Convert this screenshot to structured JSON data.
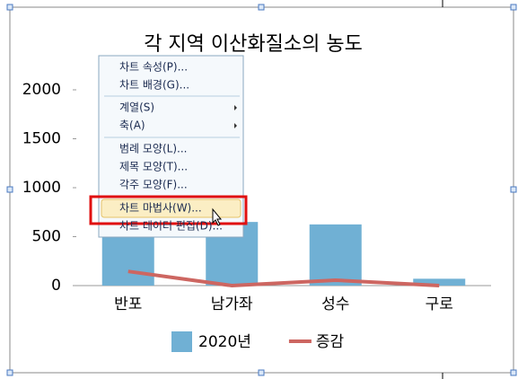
{
  "chart_data": {
    "type": "bar",
    "title": "각 지역 이산화질소의 농도",
    "categories": [
      "반포",
      "남가좌",
      "성수",
      "구로"
    ],
    "series": [
      {
        "name": "2020년",
        "type": "bar",
        "color": "#70b0d4",
        "values": [
          600,
          650,
          625,
          70
        ]
      },
      {
        "name": "증감",
        "type": "line",
        "color": "#cd6661",
        "values": [
          145,
          0,
          55,
          0
        ]
      }
    ],
    "ylim": [
      0,
      2000
    ],
    "yticks": [
      0,
      500,
      1000,
      1500,
      2000
    ],
    "grid": false,
    "legend": "bottom"
  },
  "menu": {
    "items": [
      {
        "label": "차트 속성(P)...",
        "submenu": false
      },
      {
        "label": "차트 배경(G)...",
        "submenu": false
      },
      {
        "label": "계열(S)",
        "submenu": true
      },
      {
        "label": "축(A)",
        "submenu": true
      },
      {
        "label": "범례 모양(L)...",
        "submenu": false
      },
      {
        "label": "제목 모양(T)...",
        "submenu": false
      },
      {
        "label": "각주 모양(F)...",
        "submenu": false
      },
      {
        "label": "차트 마법사(W)...",
        "submenu": false
      },
      {
        "label": "차트 데이터 편집(D)...",
        "submenu": false
      }
    ],
    "highlighted": 7
  }
}
